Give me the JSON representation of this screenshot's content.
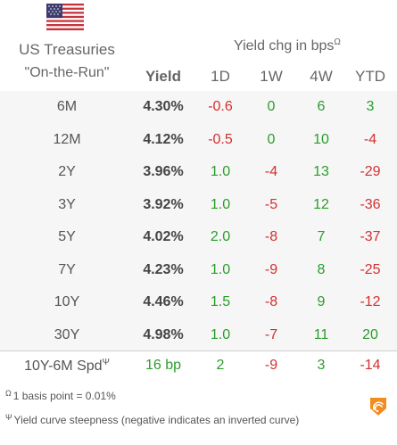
{
  "header": {
    "title": "US Treasuries",
    "subtitle": "\"On-the-Run\"",
    "yield_label": "Yield",
    "chg_label": "Yield chg in bps",
    "chg_marker": "Ω",
    "cols": [
      "1D",
      "1W",
      "4W",
      "YTD"
    ]
  },
  "rows": [
    {
      "label": "6M",
      "yield": "4.30%",
      "d": "-0.6",
      "w": "0",
      "w4": "6",
      "ytd": "3"
    },
    {
      "label": "12M",
      "yield": "4.12%",
      "d": "-0.5",
      "w": "0",
      "w4": "10",
      "ytd": "-4"
    },
    {
      "label": "2Y",
      "yield": "3.96%",
      "d": "1.0",
      "w": "-4",
      "w4": "13",
      "ytd": "-29"
    },
    {
      "label": "3Y",
      "yield": "3.92%",
      "d": "1.0",
      "w": "-5",
      "w4": "12",
      "ytd": "-36"
    },
    {
      "label": "5Y",
      "yield": "4.02%",
      "d": "2.0",
      "w": "-8",
      "w4": "7",
      "ytd": "-37"
    },
    {
      "label": "7Y",
      "yield": "4.23%",
      "d": "1.0",
      "w": "-9",
      "w4": "8",
      "ytd": "-25"
    },
    {
      "label": "10Y",
      "yield": "4.46%",
      "d": "1.5",
      "w": "-8",
      "w4": "9",
      "ytd": "-12"
    },
    {
      "label": "30Y",
      "yield": "4.98%",
      "d": "1.0",
      "w": "-7",
      "w4": "11",
      "ytd": "20"
    }
  ],
  "spread": {
    "label": "10Y-6M Spd",
    "marker": "Ψ",
    "value": "16 bp",
    "d": "2",
    "w": "-9",
    "w4": "3",
    "ytd": "-14"
  },
  "footnotes": [
    {
      "marker": "Ω",
      "text": "1 basis point = 0.01%"
    },
    {
      "marker": "Ψ",
      "text": "Yield curve steepness (negative indicates an inverted curve)"
    }
  ],
  "colors": {
    "positive": "#2a9d2a",
    "negative": "#d33030",
    "zero": "#2a9d2a",
    "logo": "#f28c1e"
  },
  "icons": {
    "flag": "us-flag-icon",
    "logo": "brand-logo-icon"
  }
}
